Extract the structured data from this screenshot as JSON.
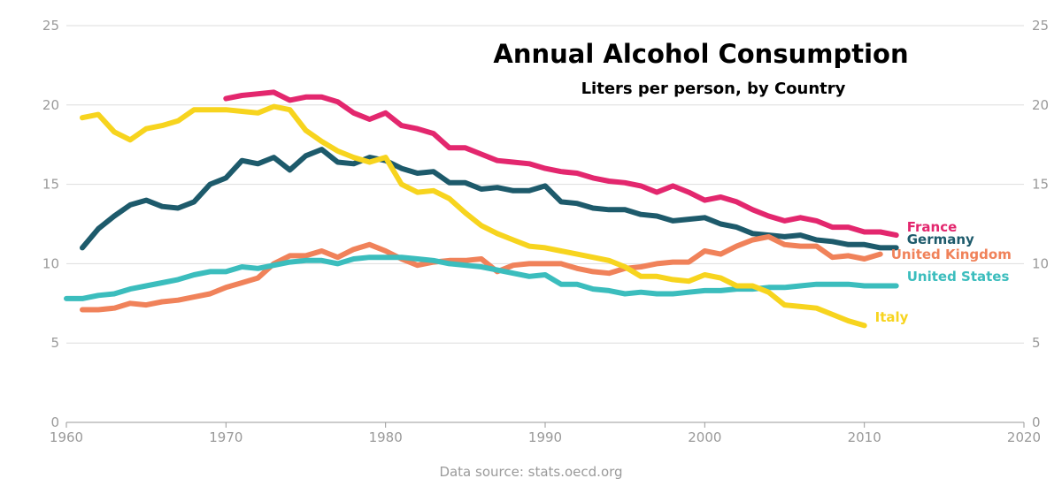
{
  "chart_data": {
    "type": "line",
    "title": "Annual Alcohol Consumption",
    "subtitle": "Liters per person, by Country",
    "source": "Data source: stats.oecd.org",
    "xlabel": "",
    "ylabel": "",
    "xlim": [
      1960,
      2020
    ],
    "ylim": [
      0,
      25
    ],
    "x_ticks": [
      1960,
      1970,
      1980,
      1990,
      2000,
      2010,
      2020
    ],
    "y_ticks": [
      0,
      5,
      10,
      15,
      20,
      25
    ],
    "grid": "horizontal",
    "axis_color": "#9a9a9a",
    "grid_color": "#dddddd",
    "series": [
      {
        "name": "France",
        "color": "#e3276e",
        "x": [
          1970,
          1971,
          1972,
          1973,
          1974,
          1975,
          1976,
          1977,
          1978,
          1979,
          1980,
          1981,
          1982,
          1983,
          1984,
          1985,
          1986,
          1987,
          1988,
          1989,
          1990,
          1991,
          1992,
          1993,
          1994,
          1995,
          1996,
          1997,
          1998,
          1999,
          2000,
          2001,
          2002,
          2003,
          2004,
          2005,
          2006,
          2007,
          2008,
          2009,
          2010,
          2011,
          2012
        ],
        "values": [
          20.4,
          20.6,
          20.7,
          20.8,
          20.3,
          20.5,
          20.5,
          20.2,
          19.5,
          19.1,
          19.5,
          18.7,
          18.5,
          18.2,
          17.3,
          17.3,
          16.9,
          16.5,
          16.4,
          16.3,
          16.0,
          15.8,
          15.7,
          15.4,
          15.2,
          15.1,
          14.9,
          14.5,
          14.9,
          14.5,
          14.0,
          14.2,
          13.9,
          13.4,
          13.0,
          12.7,
          12.9,
          12.7,
          12.3,
          12.3,
          12.0,
          12.0,
          11.8
        ]
      },
      {
        "name": "Germany",
        "color": "#1d5a6b",
        "x": [
          1961,
          1962,
          1963,
          1964,
          1965,
          1966,
          1967,
          1968,
          1969,
          1970,
          1971,
          1972,
          1973,
          1974,
          1975,
          1976,
          1977,
          1978,
          1979,
          1980,
          1981,
          1982,
          1983,
          1984,
          1985,
          1986,
          1987,
          1988,
          1989,
          1990,
          1991,
          1992,
          1993,
          1994,
          1995,
          1996,
          1997,
          1998,
          1999,
          2000,
          2001,
          2002,
          2003,
          2004,
          2005,
          2006,
          2007,
          2008,
          2009,
          2010,
          2011,
          2012
        ],
        "values": [
          11.0,
          12.2,
          13.0,
          13.7,
          14.0,
          13.6,
          13.5,
          13.9,
          15.0,
          15.4,
          16.5,
          16.3,
          16.7,
          15.9,
          16.8,
          17.2,
          16.4,
          16.3,
          16.7,
          16.5,
          16.0,
          15.7,
          15.8,
          15.1,
          15.1,
          14.7,
          14.8,
          14.6,
          14.6,
          14.9,
          13.9,
          13.8,
          13.5,
          13.4,
          13.4,
          13.1,
          13.0,
          12.7,
          12.8,
          12.9,
          12.5,
          12.3,
          11.9,
          11.8,
          11.7,
          11.8,
          11.5,
          11.4,
          11.2,
          11.2,
          11.0,
          11.0
        ]
      },
      {
        "name": "United Kingdom",
        "color": "#f0825a",
        "x": [
          1961,
          1962,
          1963,
          1964,
          1965,
          1966,
          1967,
          1968,
          1969,
          1970,
          1971,
          1972,
          1973,
          1974,
          1975,
          1976,
          1977,
          1978,
          1979,
          1980,
          1981,
          1982,
          1983,
          1984,
          1985,
          1986,
          1987,
          1988,
          1989,
          1990,
          1991,
          1992,
          1993,
          1994,
          1995,
          1996,
          1997,
          1998,
          1999,
          2000,
          2001,
          2002,
          2003,
          2004,
          2005,
          2006,
          2007,
          2008,
          2009,
          2010,
          2011
        ],
        "values": [
          7.1,
          7.1,
          7.2,
          7.5,
          7.4,
          7.6,
          7.7,
          7.9,
          8.1,
          8.5,
          8.8,
          9.1,
          10.0,
          10.5,
          10.5,
          10.8,
          10.4,
          10.9,
          11.2,
          10.8,
          10.3,
          9.9,
          10.1,
          10.2,
          10.2,
          10.3,
          9.5,
          9.9,
          10.0,
          10.0,
          10.0,
          9.7,
          9.5,
          9.4,
          9.7,
          9.8,
          10.0,
          10.1,
          10.1,
          10.8,
          10.6,
          11.1,
          11.5,
          11.7,
          11.2,
          11.1,
          11.1,
          10.4,
          10.5,
          10.3,
          10.6
        ]
      },
      {
        "name": "United States",
        "color": "#3bbdbd",
        "x": [
          1960,
          1961,
          1962,
          1963,
          1964,
          1965,
          1966,
          1967,
          1968,
          1969,
          1970,
          1971,
          1972,
          1973,
          1974,
          1975,
          1976,
          1977,
          1978,
          1979,
          1980,
          1981,
          1982,
          1983,
          1984,
          1985,
          1986,
          1987,
          1988,
          1989,
          1990,
          1991,
          1992,
          1993,
          1994,
          1995,
          1996,
          1997,
          1998,
          1999,
          2000,
          2001,
          2002,
          2003,
          2004,
          2005,
          2006,
          2007,
          2008,
          2009,
          2010,
          2011,
          2012
        ],
        "values": [
          7.8,
          7.8,
          8.0,
          8.1,
          8.4,
          8.6,
          8.8,
          9.0,
          9.3,
          9.5,
          9.5,
          9.8,
          9.7,
          9.9,
          10.1,
          10.2,
          10.2,
          10.0,
          10.3,
          10.4,
          10.4,
          10.4,
          10.3,
          10.2,
          10.0,
          9.9,
          9.8,
          9.6,
          9.4,
          9.2,
          9.3,
          8.7,
          8.7,
          8.4,
          8.3,
          8.1,
          8.2,
          8.1,
          8.1,
          8.2,
          8.3,
          8.3,
          8.4,
          8.4,
          8.5,
          8.5,
          8.6,
          8.7,
          8.7,
          8.7,
          8.6,
          8.6,
          8.6
        ]
      },
      {
        "name": "Italy",
        "color": "#f7d41e",
        "x": [
          1961,
          1962,
          1963,
          1964,
          1965,
          1966,
          1967,
          1968,
          1969,
          1970,
          1971,
          1972,
          1973,
          1974,
          1975,
          1976,
          1977,
          1978,
          1979,
          1980,
          1981,
          1982,
          1983,
          1984,
          1985,
          1986,
          1987,
          1988,
          1989,
          1990,
          1991,
          1992,
          1993,
          1994,
          1995,
          1996,
          1997,
          1998,
          1999,
          2000,
          2001,
          2002,
          2003,
          2004,
          2005,
          2006,
          2007,
          2008,
          2009,
          2010
        ],
        "values": [
          19.2,
          19.4,
          18.3,
          17.8,
          18.5,
          18.7,
          19.0,
          19.7,
          19.7,
          19.7,
          19.6,
          19.5,
          19.9,
          19.7,
          18.4,
          17.7,
          17.1,
          16.7,
          16.4,
          16.7,
          15.0,
          14.5,
          14.6,
          14.1,
          13.2,
          12.4,
          11.9,
          11.5,
          11.1,
          11.0,
          10.8,
          10.6,
          10.4,
          10.2,
          9.8,
          9.2,
          9.2,
          9.0,
          8.9,
          9.3,
          9.1,
          8.6,
          8.6,
          8.2,
          7.4,
          7.3,
          7.2,
          6.8,
          6.4,
          6.1
        ]
      }
    ]
  }
}
